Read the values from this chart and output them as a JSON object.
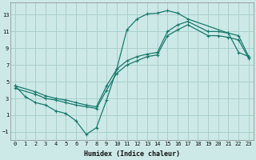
{
  "xlabel": "Humidex (Indice chaleur)",
  "xlim": [
    -0.5,
    23.5
  ],
  "ylim": [
    -2.0,
    14.5
  ],
  "xticks": [
    0,
    1,
    2,
    3,
    4,
    5,
    6,
    7,
    8,
    9,
    10,
    11,
    12,
    13,
    14,
    15,
    16,
    17,
    18,
    19,
    20,
    21,
    22,
    23
  ],
  "yticks": [
    -1,
    1,
    3,
    5,
    7,
    9,
    11,
    13
  ],
  "bg_color": "#cce9e7",
  "grid_color": "#aacfcd",
  "line_color": "#1a7a6e",
  "curve1_x": [
    0,
    1,
    2,
    3,
    4,
    5,
    6,
    7,
    8,
    9,
    10,
    11,
    12,
    13,
    14,
    15,
    16,
    17,
    21,
    22,
    23
  ],
  "curve1_y": [
    4.5,
    3.2,
    2.5,
    2.2,
    1.5,
    1.2,
    0.3,
    -1.3,
    -0.5,
    2.8,
    6.5,
    11.2,
    12.5,
    13.1,
    13.2,
    13.5,
    13.2,
    12.5,
    10.8,
    8.5,
    8.0
  ],
  "curve2_x": [
    0,
    2,
    3,
    4,
    5,
    6,
    7,
    8,
    9,
    10,
    11,
    12,
    13,
    14,
    15,
    16,
    17,
    19,
    20,
    21,
    22,
    23
  ],
  "curve2_y": [
    4.5,
    3.8,
    3.3,
    3.0,
    2.8,
    2.5,
    2.2,
    2.0,
    4.5,
    6.5,
    7.5,
    8.0,
    8.3,
    8.5,
    11.0,
    11.8,
    12.2,
    11.0,
    11.0,
    10.8,
    10.5,
    8.0
  ],
  "curve3_x": [
    0,
    2,
    3,
    4,
    5,
    6,
    7,
    8,
    9,
    10,
    11,
    12,
    13,
    14,
    15,
    16,
    17,
    19,
    20,
    21,
    22,
    23
  ],
  "curve3_y": [
    4.2,
    3.5,
    3.0,
    2.8,
    2.5,
    2.2,
    2.0,
    1.8,
    4.0,
    6.0,
    7.0,
    7.5,
    8.0,
    8.2,
    10.5,
    11.2,
    11.8,
    10.5,
    10.5,
    10.3,
    10.0,
    7.8
  ]
}
